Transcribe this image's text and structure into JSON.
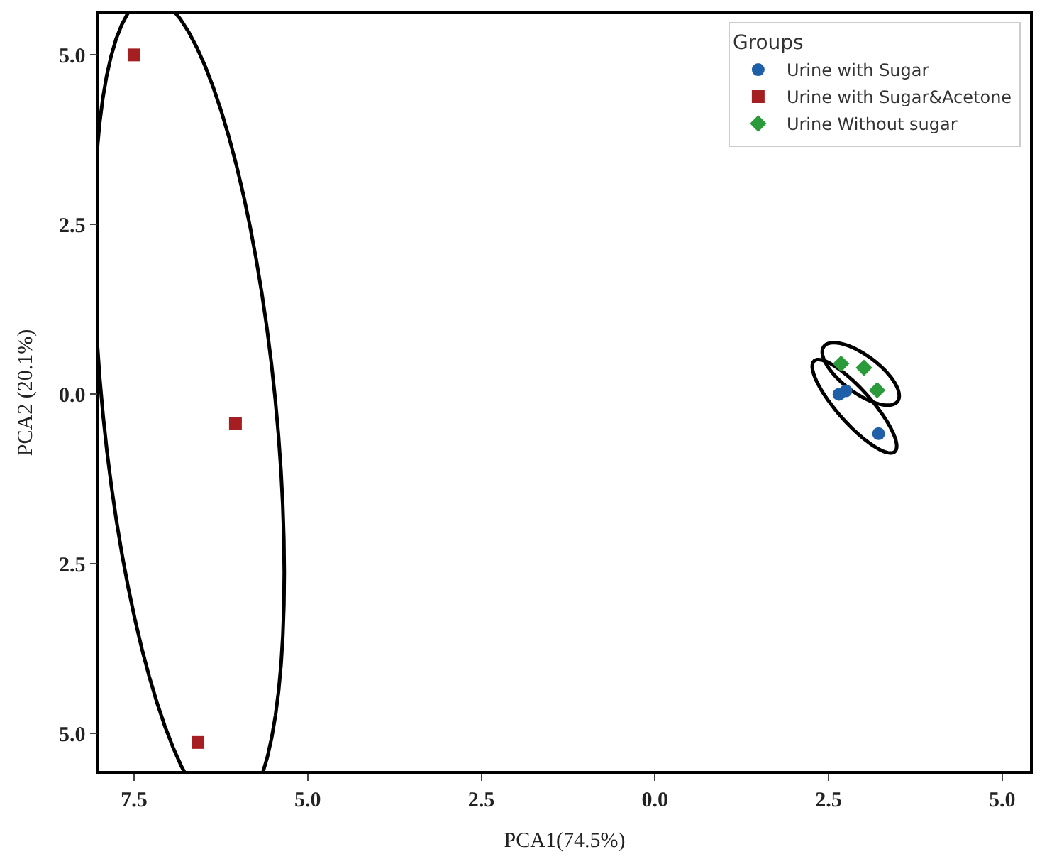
{
  "chart_data": {
    "type": "scatter",
    "xlabel": "PCA1(74.5%)",
    "ylabel": "PCA2 (20.1%)",
    "legend_title": "Groups",
    "legend": "top right",
    "grid": false,
    "xlim": [
      -8.0,
      5.4
    ],
    "ylim": [
      -5.55,
      5.6
    ],
    "xticks": [
      {
        "value": -7.5,
        "label": "7.5"
      },
      {
        "value": -5.0,
        "label": "5.0"
      },
      {
        "value": -2.5,
        "label": "2.5"
      },
      {
        "value": 0,
        "label": "0.0"
      },
      2.5,
      {
        "value": 5,
        "label": "5.0"
      }
    ],
    "yticks": [
      {
        "value": -5.0,
        "label": "5.0"
      },
      {
        "value": -2.5,
        "label": "2.5"
      },
      {
        "value": 0,
        "label": "0.0"
      },
      2.5,
      {
        "value": 5,
        "label": "5.0"
      }
    ],
    "series": [
      {
        "name": "Urine with Sugar",
        "color": "#1f5fa8",
        "marker": "circle",
        "x": [
          2.65,
          2.75,
          3.22
        ],
        "values": [
          0.0,
          0.05,
          -0.58
        ]
      },
      {
        "name": "Urine with Sugar&Acetone",
        "color": "#a51e22",
        "marker": "square",
        "x": [
          -7.5,
          -6.04,
          -6.58
        ],
        "values": [
          5.0,
          -0.43,
          -5.13
        ]
      },
      {
        "name": "Urine Without sugar",
        "color": "#2a9a3a",
        "marker": "diamond",
        "x": [
          2.68,
          3.01,
          3.2
        ],
        "values": [
          0.45,
          0.39,
          0.06
        ]
      }
    ]
  }
}
